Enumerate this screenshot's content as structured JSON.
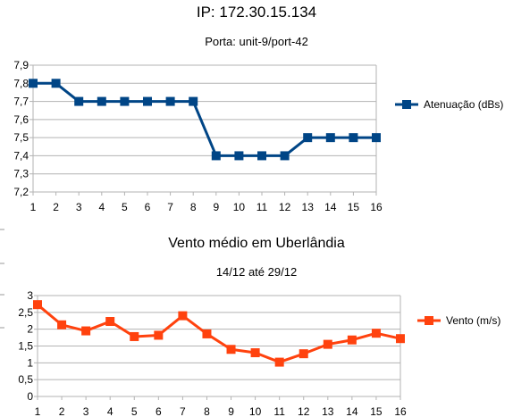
{
  "page": {
    "title": "IP: 172.30.15.134"
  },
  "colors": {
    "series1": "#004586",
    "series2": "#ff420e",
    "grid": "#b3b3b3",
    "axis": "#b3b3b3"
  },
  "chart_data": [
    {
      "type": "line",
      "title": "Porta: unit-9/port-42",
      "xlabel": "",
      "ylabel": "",
      "x": [
        "1",
        "2",
        "3",
        "4",
        "5",
        "6",
        "7",
        "8",
        "9",
        "10",
        "11",
        "12",
        "13",
        "14",
        "15",
        "16"
      ],
      "ylim": [
        7.2,
        7.9
      ],
      "yticks": [
        "7,2",
        "7,3",
        "7,4",
        "7,5",
        "7,6",
        "7,7",
        "7,8",
        "7,9"
      ],
      "grid": "horizontal",
      "legend": "right",
      "marker": "square",
      "series": [
        {
          "name": "Atenuação (dBs)",
          "values": [
            7.8,
            7.8,
            7.7,
            7.7,
            7.7,
            7.7,
            7.7,
            7.7,
            7.4,
            7.4,
            7.4,
            7.4,
            7.5,
            7.5,
            7.5,
            7.5
          ]
        }
      ]
    },
    {
      "type": "line",
      "title": "Vento médio em Uberlândia",
      "subtitle": "14/12 até 29/12",
      "xlabel": "",
      "ylabel": "",
      "x": [
        "1",
        "2",
        "3",
        "4",
        "5",
        "6",
        "7",
        "8",
        "9",
        "10",
        "11",
        "12",
        "13",
        "14",
        "15",
        "16"
      ],
      "ylim": [
        0,
        3
      ],
      "yticks": [
        "0",
        "0,5",
        "1",
        "1,5",
        "2",
        "2,5",
        "3"
      ],
      "grid": "horizontal",
      "legend": "right",
      "marker": "square",
      "series": [
        {
          "name": "Vento (m/s)",
          "values": [
            2.73,
            2.13,
            1.95,
            2.23,
            1.78,
            1.82,
            2.4,
            1.86,
            1.4,
            1.3,
            1.02,
            1.27,
            1.55,
            1.68,
            1.88,
            1.72
          ]
        }
      ]
    }
  ]
}
